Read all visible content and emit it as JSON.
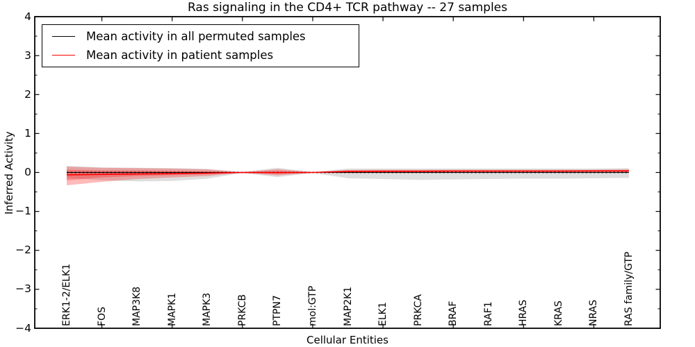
{
  "title": "Ras signaling in the CD4+ TCR pathway -- 27 samples",
  "legend": {
    "entries": [
      {
        "label": "Mean activity in all permuted samples",
        "color": "#000000"
      },
      {
        "label": "Mean activity in patient samples",
        "color": "#ff0000"
      }
    ]
  },
  "chart_data": {
    "type": "area",
    "title": "Ras signaling in the CD4+ TCR pathway -- 27 samples",
    "xlabel": "Cellular Entities",
    "ylabel": "Inferred Activity",
    "ylim": [
      -4,
      4
    ],
    "yticks": [
      -4,
      -3,
      -2,
      -1,
      0,
      1,
      2,
      3,
      4
    ],
    "legend_position": "upper left",
    "grid": false,
    "categories": [
      "ERK1-2/ELK1",
      "FOS",
      "MAP3K8",
      "MAPK1",
      "MAPK3",
      "PRKCB",
      "PTPN7",
      "mol:GTP",
      "MAP2K1",
      "ELK1",
      "PRKCA",
      "BRAF",
      "RAF1",
      "HRAS",
      "KRAS",
      "NRAS",
      "RAS family/GTP"
    ],
    "xtick_indices": [
      1,
      3,
      5,
      7,
      9,
      11,
      13,
      15
    ],
    "series": [
      {
        "name": "Mean activity in all permuted samples",
        "id": "permuted-mean",
        "color": "#000000",
        "values": [
          0,
          0,
          0,
          0,
          0,
          0,
          0,
          0,
          0,
          0,
          0,
          0,
          0,
          0,
          0,
          0,
          0
        ]
      },
      {
        "name": "Mean activity in patient samples",
        "id": "patient-mean",
        "color": "#ff0000",
        "values": [
          -0.06,
          -0.05,
          -0.04,
          -0.03,
          -0.02,
          0.0,
          -0.005,
          0.0,
          0.025,
          0.03,
          0.03,
          0.035,
          0.035,
          0.035,
          0.035,
          0.04,
          0.04
        ]
      }
    ],
    "bands": [
      {
        "name": "permuted-ci",
        "color": "rgba(0,0,0,0.13)",
        "upper": [
          0.17,
          0.13,
          0.12,
          0.11,
          0.09,
          0.01,
          0.12,
          0.01,
          0.1,
          0.1,
          0.1,
          0.1,
          0.1,
          0.1,
          0.1,
          0.1,
          0.11
        ],
        "lower": [
          -0.14,
          -0.2,
          -0.23,
          -0.22,
          -0.16,
          -0.01,
          -0.12,
          -0.01,
          -0.15,
          -0.17,
          -0.19,
          -0.18,
          -0.17,
          -0.16,
          -0.16,
          -0.15,
          -0.14
        ]
      },
      {
        "name": "patient-ci-outer",
        "color": "rgba(255,0,0,0.27)",
        "upper": [
          0.15,
          0.12,
          0.11,
          0.1,
          0.08,
          0.008,
          0.085,
          0.008,
          0.065,
          0.07,
          0.07,
          0.07,
          0.07,
          0.07,
          0.07,
          0.07,
          0.08
        ],
        "lower": [
          -0.33,
          -0.24,
          -0.17,
          -0.13,
          -0.09,
          -0.008,
          -0.075,
          -0.008,
          -0.01,
          -0.01,
          -0.01,
          -0.005,
          -0.005,
          -0.005,
          -0.005,
          0.0,
          0.0
        ]
      },
      {
        "name": "patient-ci-inner",
        "color": "rgba(255,0,0,0.27)",
        "upper": [
          0.07,
          0.05,
          0.05,
          0.04,
          0.03,
          0.004,
          0.04,
          0.004,
          0.045,
          0.05,
          0.05,
          0.05,
          0.05,
          0.05,
          0.05,
          0.055,
          0.06
        ],
        "lower": [
          -0.2,
          -0.13,
          -0.09,
          -0.07,
          -0.04,
          -0.004,
          -0.03,
          -0.004,
          0.005,
          0.01,
          0.01,
          0.015,
          0.015,
          0.015,
          0.015,
          0.02,
          0.02
        ]
      }
    ],
    "zero_line": {
      "style": "dashed",
      "color": "#000000",
      "value": 0
    }
  }
}
